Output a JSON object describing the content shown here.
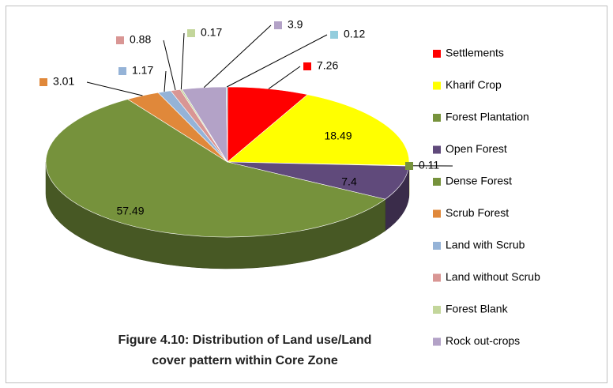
{
  "chart_data": {
    "type": "pie3d",
    "title": "Figure 4.10: Distribution of Land use/Land cover pattern within Core Zone",
    "categories": [
      "Settlements",
      "Kharif Crop",
      "Forest Plantation",
      "Open Forest",
      "Dense Forest",
      "Scrub Forest",
      "Land with Scrub",
      "Land without Scrub",
      "Forest Blank",
      "Rock out-crops",
      null
    ],
    "values": [
      7.26,
      18.49,
      0.11,
      7.4,
      57.49,
      3.01,
      1.17,
      0.88,
      0.17,
      3.9,
      0.12
    ],
    "colors": [
      "#ff0000",
      "#ffff00",
      "#77933c",
      "#604a7b",
      "#76923c",
      "#e0883a",
      "#95b3d7",
      "#d99694",
      "#c3d69b",
      "#b3a2c7",
      "#93cddd"
    ],
    "legend": "right"
  }
}
